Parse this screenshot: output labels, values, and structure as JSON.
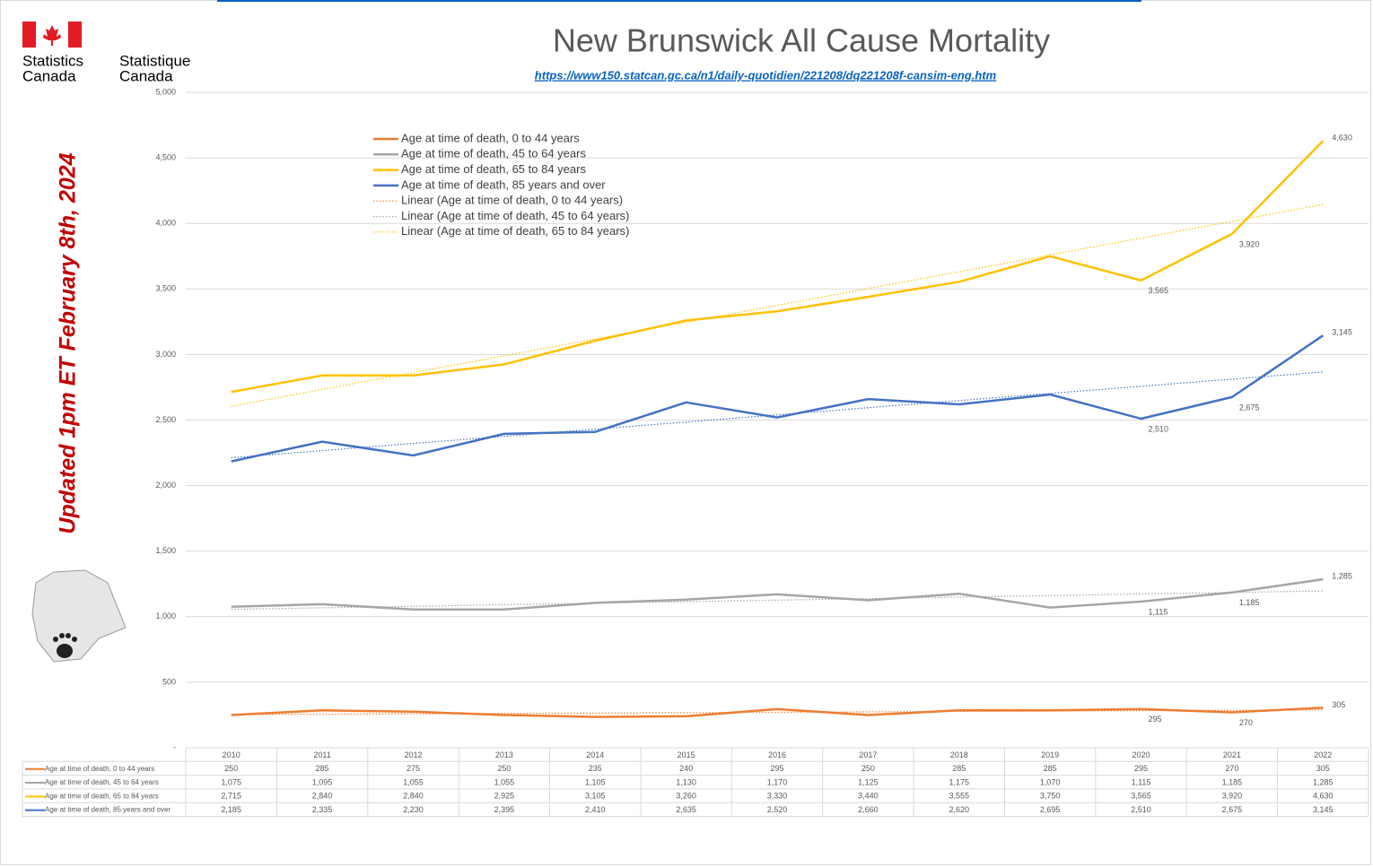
{
  "logo": {
    "english": [
      "Statistics",
      "Canada"
    ],
    "french": [
      "Statistique",
      "Canada"
    ]
  },
  "updated_note": "Updated 1pm ET February 8th, 2024",
  "chart_data": {
    "type": "line",
    "title": "New Brunswick All Cause Mortality",
    "subtitle": "https://www150.statcan.gc.ca/n1/daily-quotidien/221208/dq221208f-cansim-eng.htm",
    "categories": [
      "2010",
      "2011",
      "2012",
      "2013",
      "2014",
      "2015",
      "2016",
      "2017",
      "2018",
      "2019",
      "2020",
      "2021",
      "2022"
    ],
    "ylim": [
      0,
      5000
    ],
    "yticks": [
      {
        "value": 0,
        "label": "-"
      },
      500,
      {
        "value": 1000,
        "label": "1,000"
      },
      {
        "value": 1500,
        "label": "1,500"
      },
      {
        "value": 2000,
        "label": "2,000"
      },
      {
        "value": 2500,
        "label": "2,500"
      },
      {
        "value": 3000,
        "label": "3,000"
      },
      {
        "value": 3500,
        "label": "3,500"
      },
      {
        "value": 4000,
        "label": "4,000"
      },
      {
        "value": 4500,
        "label": "4,500"
      },
      {
        "value": 5000,
        "label": "5,000"
      }
    ],
    "grid": true,
    "series": [
      {
        "name": "Age at time of death, 0 to 44 years",
        "color": "#ed7d31",
        "values": [
          250,
          285,
          275,
          250,
          235,
          240,
          295,
          250,
          285,
          285,
          295,
          270,
          305
        ],
        "value_labels": [
          "250",
          "285",
          "275",
          "250",
          "235",
          "240",
          "295",
          "250",
          "285",
          "285",
          "295",
          "270",
          "305"
        ],
        "labeled_points": [
          10,
          11,
          12
        ],
        "trendline": true,
        "trendline_name": "Linear (Age at time of death, 0 to 44 years)"
      },
      {
        "name": "Age at time of death, 45 to 64 years",
        "color": "#a5a5a5",
        "values": [
          1075,
          1095,
          1055,
          1055,
          1105,
          1130,
          1170,
          1125,
          1175,
          1070,
          1115,
          1185,
          1285
        ],
        "value_labels": [
          "1,075",
          "1,095",
          "1,055",
          "1,055",
          "1,105",
          "1,130",
          "1,170",
          "1,125",
          "1,175",
          "1,070",
          "1,115",
          "1,185",
          "1,285"
        ],
        "labeled_points": [
          10,
          11,
          12
        ],
        "trendline": true,
        "trendline_name": "Linear (Age at time of death, 45 to 64 years)"
      },
      {
        "name": "Age at time of death, 65 to 84 years",
        "color": "#ffc000",
        "values": [
          2715,
          2840,
          2840,
          2925,
          3105,
          3260,
          3330,
          3440,
          3555,
          3750,
          3565,
          3920,
          4630
        ],
        "value_labels": [
          "2,715",
          "2,840",
          "2,840",
          "2,925",
          "3,105",
          "3,260",
          "3,330",
          "3,440",
          "3,555",
          "3,750",
          "3,565",
          "3,920",
          "4,630"
        ],
        "labeled_points": [
          10,
          11,
          12
        ],
        "trendline": true,
        "trendline_name": "Linear (Age at time of death, 65 to 84 years)"
      },
      {
        "name": "Age at time of death, 85 years and over",
        "color": "#4472c4",
        "values": [
          2185,
          2335,
          2230,
          2395,
          2410,
          2635,
          2520,
          2660,
          2620,
          2695,
          2510,
          2675,
          3145
        ],
        "value_labels": [
          "2,185",
          "2,335",
          "2,230",
          "2,395",
          "2,410",
          "2,635",
          "2,520",
          "2,660",
          "2,620",
          "2,695",
          "2,510",
          "2,675",
          "3,145"
        ],
        "labeled_points": [
          10,
          11,
          12
        ],
        "trendline": true
      }
    ]
  }
}
